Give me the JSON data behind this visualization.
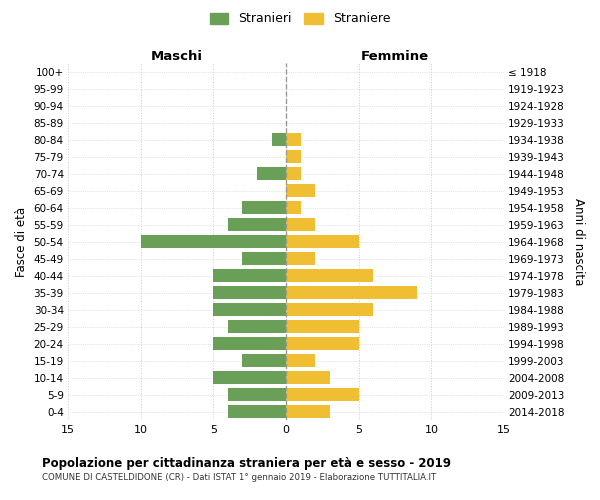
{
  "age_groups": [
    "100+",
    "95-99",
    "90-94",
    "85-89",
    "80-84",
    "75-79",
    "70-74",
    "65-69",
    "60-64",
    "55-59",
    "50-54",
    "45-49",
    "40-44",
    "35-39",
    "30-34",
    "25-29",
    "20-24",
    "15-19",
    "10-14",
    "5-9",
    "0-4"
  ],
  "birth_years": [
    "≤ 1918",
    "1919-1923",
    "1924-1928",
    "1929-1933",
    "1934-1938",
    "1939-1943",
    "1944-1948",
    "1949-1953",
    "1954-1958",
    "1959-1963",
    "1964-1968",
    "1969-1973",
    "1974-1978",
    "1979-1983",
    "1984-1988",
    "1989-1993",
    "1994-1998",
    "1999-2003",
    "2004-2008",
    "2009-2013",
    "2014-2018"
  ],
  "maschi": [
    0,
    0,
    0,
    0,
    1,
    0,
    2,
    0,
    3,
    4,
    10,
    3,
    5,
    5,
    5,
    4,
    5,
    3,
    5,
    4,
    4
  ],
  "femmine": [
    0,
    0,
    0,
    0,
    1,
    1,
    1,
    2,
    1,
    2,
    5,
    2,
    6,
    9,
    6,
    5,
    5,
    2,
    3,
    5,
    3
  ],
  "color_maschi": "#6a9f58",
  "color_femmine": "#f0be32",
  "xlim": 15,
  "title": "Popolazione per cittadinanza straniera per età e sesso - 2019",
  "subtitle": "COMUNE DI CASTELDIDONE (CR) - Dati ISTAT 1° gennaio 2019 - Elaborazione TUTTITALIA.IT",
  "label_maschi": "Maschi",
  "label_femmine": "Femmine",
  "legend_stranieri": "Stranieri",
  "legend_straniere": "Straniere",
  "ylabel_left": "Fasce di età",
  "ylabel_right": "Anni di nascita",
  "background_color": "#ffffff",
  "grid_color": "#cccccc",
  "dashed_line_color": "#999999"
}
